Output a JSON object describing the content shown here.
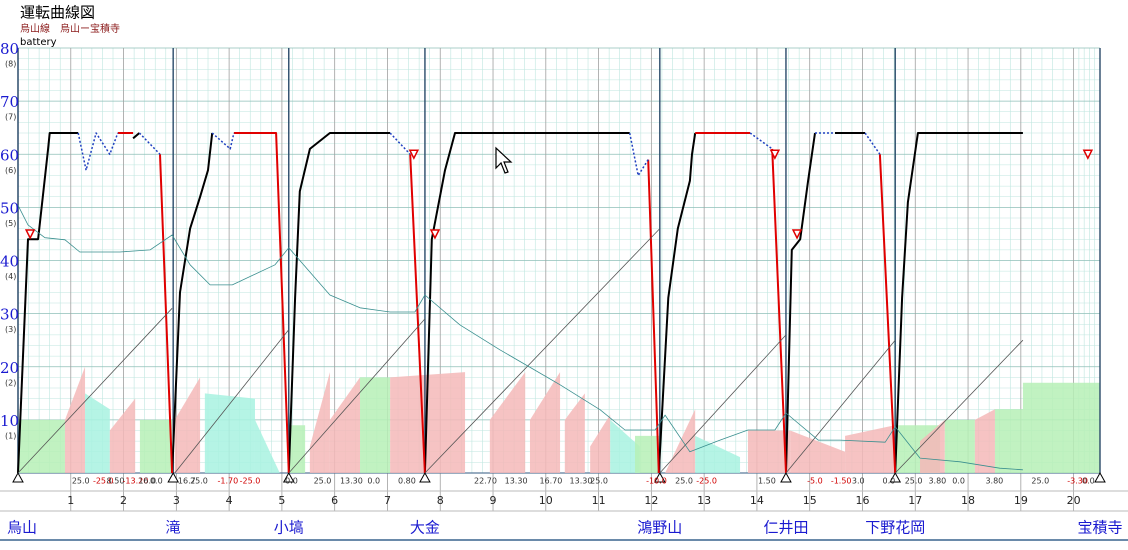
{
  "chart_data": {
    "type": "line",
    "title": "運転曲線図",
    "subtitle": "烏山線　烏山ー宝積寺",
    "xlim": [
      0,
      20.5
    ],
    "xticks": [
      1,
      2,
      3,
      4,
      5,
      6,
      7,
      8,
      9,
      10,
      11,
      12,
      13,
      14,
      15,
      16,
      17,
      18,
      19,
      20
    ],
    "ylim": [
      0,
      80
    ],
    "yticks": [
      10,
      20,
      30,
      40,
      50,
      60,
      70,
      80
    ],
    "y2lim": [
      0,
      8
    ],
    "y2ticks": [
      {
        "value": 1,
        "label": "(1)"
      },
      {
        "value": 2,
        "label": "(2)"
      },
      {
        "value": 3,
        "label": "(3)"
      },
      {
        "value": 4,
        "label": "(4)"
      },
      {
        "value": 5,
        "label": "(5)"
      },
      {
        "value": 6,
        "label": "(6)"
      },
      {
        "value": 7,
        "label": "(7)"
      },
      {
        "value": 8,
        "label": "(8)"
      }
    ],
    "grid": true,
    "series": [
      {
        "color": "#000000",
        "width": 2,
        "x": [
          0,
          0.19,
          0.38,
          0.57,
          0.6,
          1.14,
          null,
          2.18,
          2.3,
          null,
          2.92,
          3.07,
          3.26,
          3.45,
          3.6,
          3.68,
          null,
          5.13,
          5.25,
          5.34,
          5.53,
          5.91,
          7.05,
          null,
          7.71,
          7.84,
          8.09,
          8.28,
          11.59,
          null,
          12.14,
          12.32,
          12.5,
          12.73,
          12.77,
          12.83,
          null,
          14.55,
          14.66,
          14.82,
          14.97,
          15.1,
          null,
          15.48,
          16.05,
          null,
          16.62,
          16.75,
          16.86,
          17.05,
          19.04
        ],
        "values": [
          0,
          44,
          44,
          61,
          64,
          64,
          null,
          63,
          64,
          null,
          0,
          34,
          46,
          52,
          57,
          64,
          null,
          0,
          33,
          53,
          61,
          64,
          64,
          null,
          0,
          44,
          57,
          64,
          64,
          null,
          0,
          33,
          46,
          55,
          60,
          64,
          null,
          0,
          42,
          44,
          55,
          64,
          null,
          64,
          64,
          null,
          0,
          33,
          51,
          64,
          64
        ]
      },
      {
        "color": "#e00000",
        "width": 2,
        "x": [
          1.89,
          2.18,
          null,
          2.69,
          2.92,
          null,
          4.09,
          4.89,
          5.13,
          null,
          7.43,
          7.71,
          null,
          11.94,
          12.14,
          null,
          12.83,
          13.87,
          null,
          14.29,
          14.55,
          null,
          16.33,
          16.62
        ],
        "values": [
          64,
          64,
          null,
          60,
          0,
          null,
          64,
          64,
          0,
          null,
          60,
          0,
          null,
          59,
          0,
          null,
          64,
          64,
          null,
          61,
          0,
          null,
          60,
          0
        ]
      },
      {
        "color": "#2040c0",
        "width": 1.5,
        "dashed": true,
        "x": [
          1.14,
          1.29,
          1.48,
          1.74,
          1.89,
          null,
          2.3,
          2.69,
          null,
          3.68,
          4.02,
          4.09,
          null,
          7.05,
          7.43,
          null,
          11.59,
          11.75,
          11.94,
          null,
          13.87,
          14.29,
          null,
          15.1,
          15.48,
          null,
          16.05,
          16.33
        ],
        "values": [
          64,
          57,
          64,
          60,
          64,
          null,
          64,
          60,
          null,
          64,
          61,
          64,
          null,
          64,
          60,
          null,
          64,
          56,
          59,
          null,
          64,
          61,
          null,
          64,
          64,
          null,
          64,
          60
        ]
      },
      {
        "color": "#555555",
        "width": 0.8,
        "x": [
          0,
          2.92,
          null,
          2.97,
          5.13,
          null,
          5.13,
          7.71,
          null,
          7.71,
          12.16,
          null,
          12.16,
          14.55,
          null,
          14.55,
          16.62,
          null,
          16.62,
          19.04
        ],
        "values": [
          0,
          31,
          null,
          0,
          27,
          null,
          0,
          29,
          null,
          0,
          46,
          null,
          0,
          26,
          null,
          0,
          25,
          null,
          0,
          25
        ]
      },
      {
        "name": "battery",
        "color": "#3a8f8f",
        "width": 0.8,
        "x": [
          0,
          0.19,
          0.51,
          0.89,
          1.17,
          1.93,
          2.5,
          2.92,
          3.26,
          3.64,
          4.06,
          4.87,
          5.13,
          5.91,
          6.48,
          7.05,
          7.52,
          7.71,
          8.37,
          9.13,
          10.27,
          11.03,
          11.5,
          12.07,
          12.26,
          12.73,
          13.3,
          13.83,
          14.34,
          14.55,
          15.16,
          15.57,
          16.43,
          16.62,
          17.09,
          17.85,
          18.6,
          19.04
        ],
        "values": [
          50.4,
          46.7,
          44.3,
          43.9,
          41.6,
          41.6,
          42,
          44.8,
          39.2,
          35.4,
          35.4,
          39.2,
          42.4,
          33.5,
          31.1,
          30.3,
          30.3,
          33.5,
          27.9,
          23.2,
          16.6,
          11.9,
          8.1,
          8.1,
          10.9,
          4,
          6.2,
          8.1,
          8.1,
          11.3,
          6.2,
          6.2,
          5.8,
          8.7,
          2.8,
          2.1,
          0.9,
          0.6
        ]
      }
    ],
    "areas": [
      {
        "x": [
          0,
          0.89
        ],
        "values": [
          10,
          10
        ],
        "color": "#b6f0b6"
      },
      {
        "x": [
          0.89,
          1.27
        ],
        "values": [
          10,
          20
        ],
        "color": "#f4b8b8"
      },
      {
        "x": [
          1.27,
          1.74
        ],
        "values": [
          15,
          12
        ],
        "color": "#a8f2e0"
      },
      {
        "x": [
          1.74,
          2.22
        ],
        "values": [
          8,
          14
        ],
        "color": "#f4b8b8"
      },
      {
        "x": [
          2.31,
          2.92
        ],
        "values": [
          10,
          10
        ],
        "color": "#b6f0b6"
      },
      {
        "x": [
          2.97,
          3.45
        ],
        "values": [
          10,
          18
        ],
        "color": "#f4b8b8"
      },
      {
        "x": [
          3.54,
          4.49
        ],
        "values": [
          15,
          14
        ],
        "color": "#a8f2e0"
      },
      {
        "x": [
          4.49,
          4.96
        ],
        "values": [
          10,
          0
        ],
        "color": "#a8f2e0"
      },
      {
        "x": [
          5.13,
          5.44
        ],
        "values": [
          9,
          9
        ],
        "color": "#b6f0b6"
      },
      {
        "x": [
          5.53,
          5.91
        ],
        "values": [
          5,
          19
        ],
        "color": "#f4b8b8"
      },
      {
        "x": [
          5.91,
          6.48
        ],
        "values": [
          10,
          18
        ],
        "color": "#f4b8b8"
      },
      {
        "x": [
          6.48,
          7.05
        ],
        "values": [
          18,
          18
        ],
        "color": "#b6f0b6"
      },
      {
        "x": [
          7.05,
          8.47
        ],
        "values": [
          18,
          19
        ],
        "color": "#f4b8b8"
      },
      {
        "x": [
          8.94,
          9.61
        ],
        "values": [
          10,
          19
        ],
        "color": "#f4b8b8"
      },
      {
        "x": [
          9.7,
          10.27
        ],
        "values": [
          10,
          19
        ],
        "color": "#f4b8b8"
      },
      {
        "x": [
          10.36,
          10.74
        ],
        "values": [
          10,
          15
        ],
        "color": "#f4b8b8"
      },
      {
        "x": [
          10.84,
          11.22
        ],
        "values": [
          5,
          11
        ],
        "color": "#f4b8b8"
      },
      {
        "x": [
          11.22,
          11.78
        ],
        "values": [
          10,
          5
        ],
        "color": "#a8f2e0"
      },
      {
        "x": [
          11.69,
          12.16
        ],
        "values": [
          7,
          7
        ],
        "color": "#b6f0b6"
      },
      {
        "x": [
          12.26,
          12.83
        ],
        "values": [
          0,
          12
        ],
        "color": "#f4b8b8"
      },
      {
        "x": [
          12.83,
          13.68
        ],
        "values": [
          7,
          3
        ],
        "color": "#a8f2e0"
      },
      {
        "x": [
          13.83,
          14.63
        ],
        "values": [
          8,
          8
        ],
        "color": "#f4b8b8"
      },
      {
        "x": [
          14.63,
          15.67
        ],
        "values": [
          8,
          4
        ],
        "color": "#f4b8b8"
      },
      {
        "x": [
          15.67,
          16.62
        ],
        "values": [
          7,
          9
        ],
        "color": "#f4b8b8"
      },
      {
        "x": [
          16.62,
          17.47
        ],
        "values": [
          9,
          9
        ],
        "color": "#b6f0b6"
      },
      {
        "x": [
          17.09,
          17.56
        ],
        "values": [
          6,
          10
        ],
        "color": "#f4b8b8"
      },
      {
        "x": [
          17.56,
          18.13
        ],
        "values": [
          10,
          10
        ],
        "color": "#b6f0b6"
      },
      {
        "x": [
          18.13,
          18.51
        ],
        "values": [
          10,
          12
        ],
        "color": "#f4b8b8"
      },
      {
        "x": [
          18.51,
          19.04
        ],
        "values": [
          12,
          12
        ],
        "color": "#b6f0b6"
      },
      {
        "x": [
          19.04,
          20.5
        ],
        "values": [
          17,
          17
        ],
        "color": "#b6f0b6"
      }
    ],
    "markers": {
      "color": "#e00000",
      "x": [
        0.23,
        7.5,
        7.9,
        14.34,
        14.76,
        20.27
      ],
      "values": [
        45,
        60,
        45,
        60,
        45,
        60
      ]
    },
    "stations": {
      "names": [
        "烏山",
        "滝",
        "小塙",
        "大金",
        "鴻野山",
        "仁井田",
        "下野花岡",
        "宝積寺"
      ],
      "x": [
        0,
        2.94,
        5.13,
        7.71,
        12.16,
        14.55,
        16.62,
        20.5
      ]
    },
    "grade_labels": [
      {
        "x": 1.02,
        "label": "25.0"
      },
      {
        "x": 1.42,
        "label": "-25.0"
      },
      {
        "x": 1.68,
        "label": "8.50"
      },
      {
        "x": 1.98,
        "label": "-13.20"
      },
      {
        "x": 2.28,
        "label": "16.0"
      },
      {
        "x": 2.5,
        "label": "0.0"
      },
      {
        "x": 3.03,
        "label": "16.7"
      },
      {
        "x": 3.26,
        "label": "25.0"
      },
      {
        "x": 3.78,
        "label": "-1.70"
      },
      {
        "x": 4.2,
        "label": "-25.0"
      },
      {
        "x": 5.06,
        "label": "0.0"
      },
      {
        "x": 5.6,
        "label": "25.0"
      },
      {
        "x": 6.1,
        "label": "13.30"
      },
      {
        "x": 6.62,
        "label": "0.0"
      },
      {
        "x": 7.2,
        "label": "0.80"
      },
      {
        "x": 8.64,
        "label": "22.70"
      },
      {
        "x": 9.22,
        "label": "13.30"
      },
      {
        "x": 9.88,
        "label": "16.70"
      },
      {
        "x": 10.45,
        "label": "13.30"
      },
      {
        "x": 10.84,
        "label": "25.0"
      },
      {
        "x": 11.9,
        "label": "-10.0"
      },
      {
        "x": 12.45,
        "label": "25.0"
      },
      {
        "x": 12.85,
        "label": "-25.0"
      },
      {
        "x": 14.02,
        "label": "1.50"
      },
      {
        "x": 14.95,
        "label": "-5.0"
      },
      {
        "x": 15.4,
        "label": "-1.50"
      },
      {
        "x": 15.8,
        "label": "3.0"
      },
      {
        "x": 16.38,
        "label": "0.0"
      },
      {
        "x": 16.8,
        "label": "25.0"
      },
      {
        "x": 17.25,
        "label": "3.80"
      },
      {
        "x": 17.7,
        "label": "0.0"
      },
      {
        "x": 18.33,
        "label": "3.80"
      },
      {
        "x": 19.2,
        "label": "25.0"
      },
      {
        "x": 19.88,
        "label": "-3.30"
      },
      {
        "x": 20.16,
        "label": "0.0"
      }
    ]
  }
}
